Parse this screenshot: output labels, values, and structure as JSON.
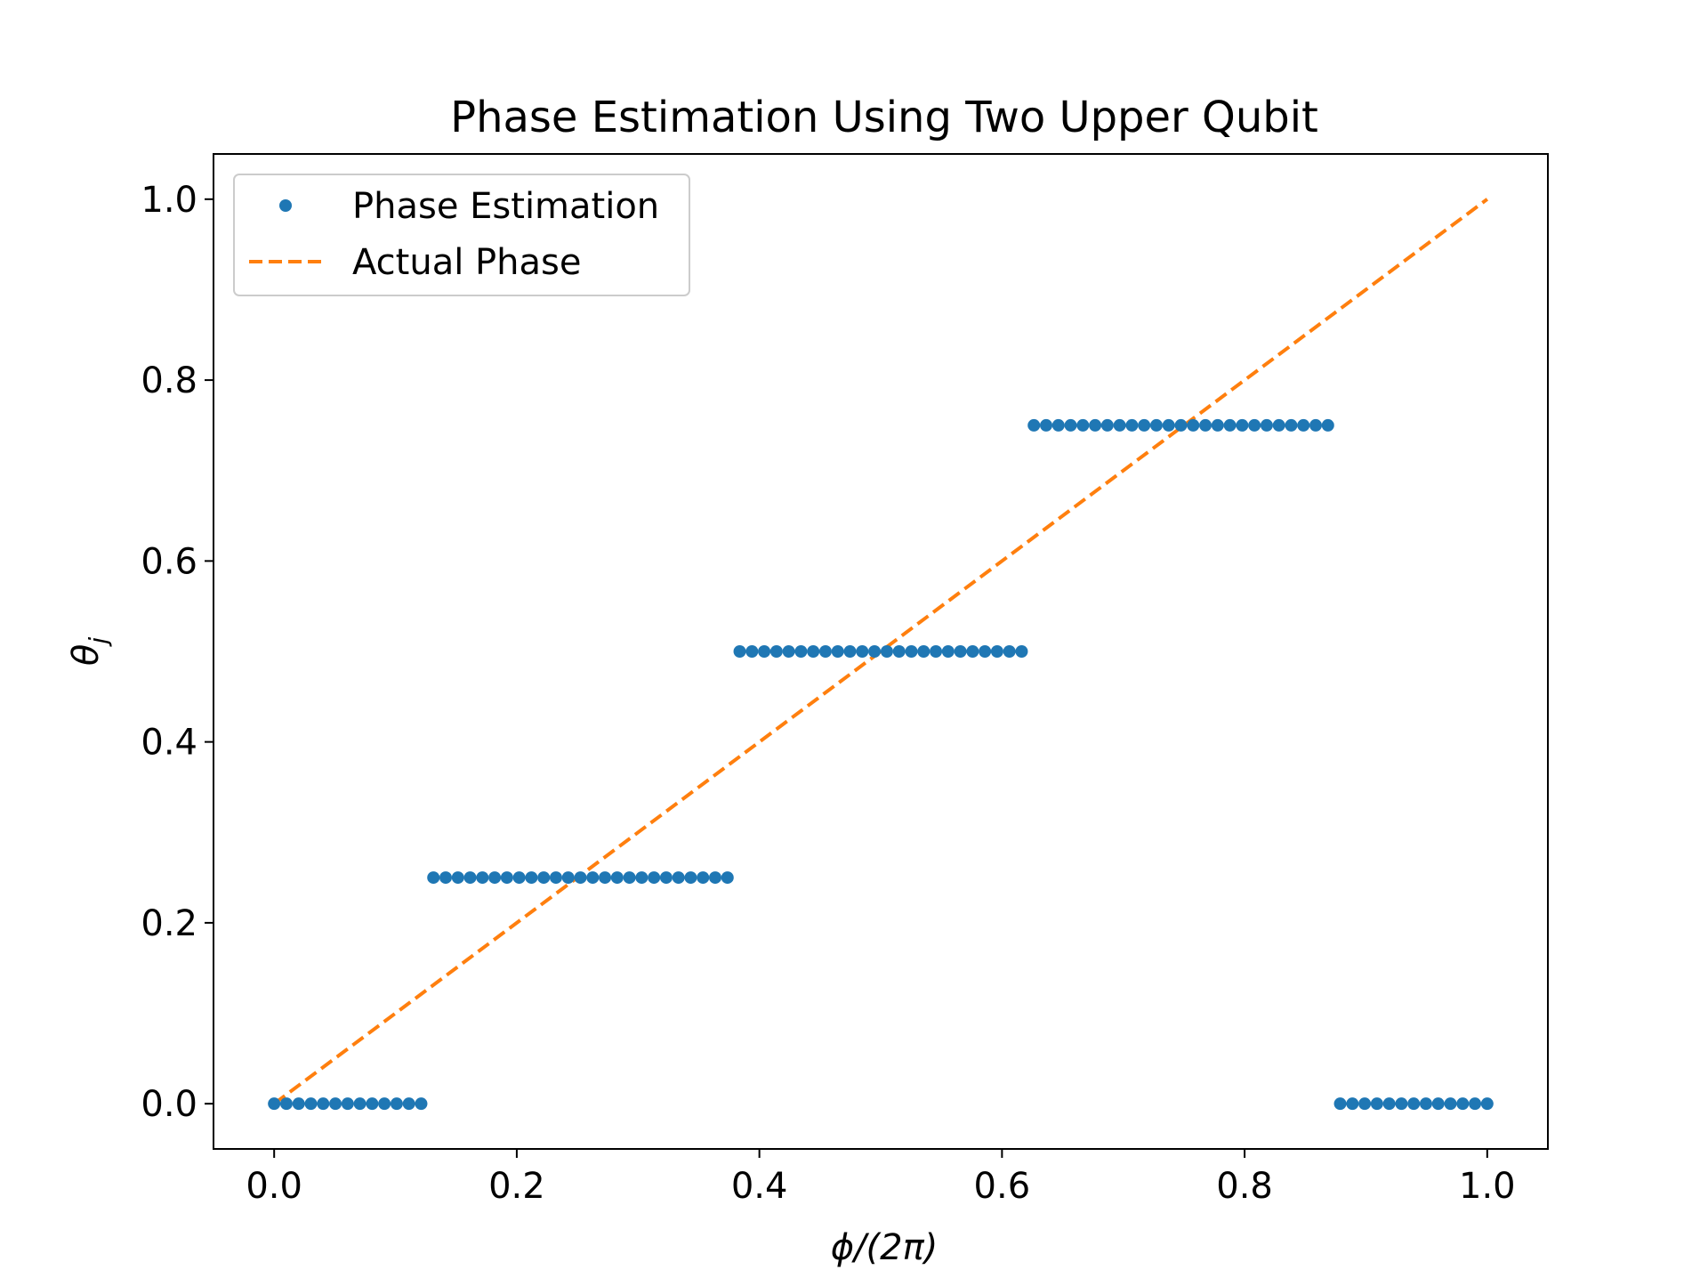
{
  "chart_data": {
    "type": "scatter",
    "title": "Phase Estimation Using Two Upper Qubit",
    "xlabel": "ϕ/(2π)",
    "ylabel_main": "θ",
    "ylabel_sub": "j",
    "xlim": [
      -0.05,
      1.05
    ],
    "ylim": [
      -0.05,
      1.05
    ],
    "x_ticks": [
      0.0,
      0.2,
      0.4,
      0.6,
      0.8,
      1.0
    ],
    "x_tick_labels": [
      "0.0",
      "0.2",
      "0.4",
      "0.6",
      "0.8",
      "1.0"
    ],
    "y_ticks": [
      0.0,
      0.2,
      0.4,
      0.6,
      0.8,
      1.0
    ],
    "y_tick_labels": [
      "0.0",
      "0.2",
      "0.4",
      "0.6",
      "0.8",
      "1.0"
    ],
    "grid": false,
    "legend_position": "upper-left",
    "series": [
      {
        "name": "Phase Estimation",
        "kind": "points",
        "color": "#1f77b4",
        "x": [
          0.0,
          0.0101,
          0.0202,
          0.0303,
          0.0404,
          0.0505,
          0.0606,
          0.0707,
          0.0808,
          0.0909,
          0.101,
          0.1111,
          0.1212,
          0.1313,
          0.1414,
          0.1515,
          0.1616,
          0.1717,
          0.1818,
          0.1919,
          0.202,
          0.2121,
          0.2222,
          0.2323,
          0.2424,
          0.2525,
          0.2626,
          0.2727,
          0.2828,
          0.2929,
          0.303,
          0.3131,
          0.3232,
          0.3333,
          0.3434,
          0.3535,
          0.3636,
          0.3737,
          0.3838,
          0.3939,
          0.404,
          0.4141,
          0.4242,
          0.4343,
          0.4444,
          0.4545,
          0.4646,
          0.4747,
          0.4848,
          0.4949,
          0.5051,
          0.5152,
          0.5253,
          0.5354,
          0.5455,
          0.5556,
          0.5657,
          0.5758,
          0.5859,
          0.596,
          0.6061,
          0.6162,
          0.6263,
          0.6364,
          0.6465,
          0.6566,
          0.6667,
          0.6768,
          0.6869,
          0.697,
          0.7071,
          0.7172,
          0.7273,
          0.7374,
          0.7475,
          0.7576,
          0.7677,
          0.7778,
          0.7879,
          0.798,
          0.8081,
          0.8182,
          0.8283,
          0.8384,
          0.8485,
          0.8586,
          0.8687,
          0.8788,
          0.8889,
          0.899,
          0.9091,
          0.9192,
          0.9293,
          0.9394,
          0.9495,
          0.9596,
          0.9697,
          0.9798,
          0.9899,
          1.0
        ],
        "y": [
          0,
          0,
          0,
          0,
          0,
          0,
          0,
          0,
          0,
          0,
          0,
          0,
          0,
          0.25,
          0.25,
          0.25,
          0.25,
          0.25,
          0.25,
          0.25,
          0.25,
          0.25,
          0.25,
          0.25,
          0.25,
          0.25,
          0.25,
          0.25,
          0.25,
          0.25,
          0.25,
          0.25,
          0.25,
          0.25,
          0.25,
          0.25,
          0.25,
          0.25,
          0.5,
          0.5,
          0.5,
          0.5,
          0.5,
          0.5,
          0.5,
          0.5,
          0.5,
          0.5,
          0.5,
          0.5,
          0.5,
          0.5,
          0.5,
          0.5,
          0.5,
          0.5,
          0.5,
          0.5,
          0.5,
          0.5,
          0.5,
          0.5,
          0.75,
          0.75,
          0.75,
          0.75,
          0.75,
          0.75,
          0.75,
          0.75,
          0.75,
          0.75,
          0.75,
          0.75,
          0.75,
          0.75,
          0.75,
          0.75,
          0.75,
          0.75,
          0.75,
          0.75,
          0.75,
          0.75,
          0.75,
          0.75,
          0.75,
          0,
          0,
          0,
          0,
          0,
          0,
          0,
          0,
          0,
          0,
          0,
          0,
          0
        ]
      },
      {
        "name": "Actual Phase",
        "kind": "dashed-line",
        "color": "#ff7f0e",
        "x": [
          0.0,
          1.0
        ],
        "y": [
          0.0,
          1.0
        ]
      }
    ]
  }
}
